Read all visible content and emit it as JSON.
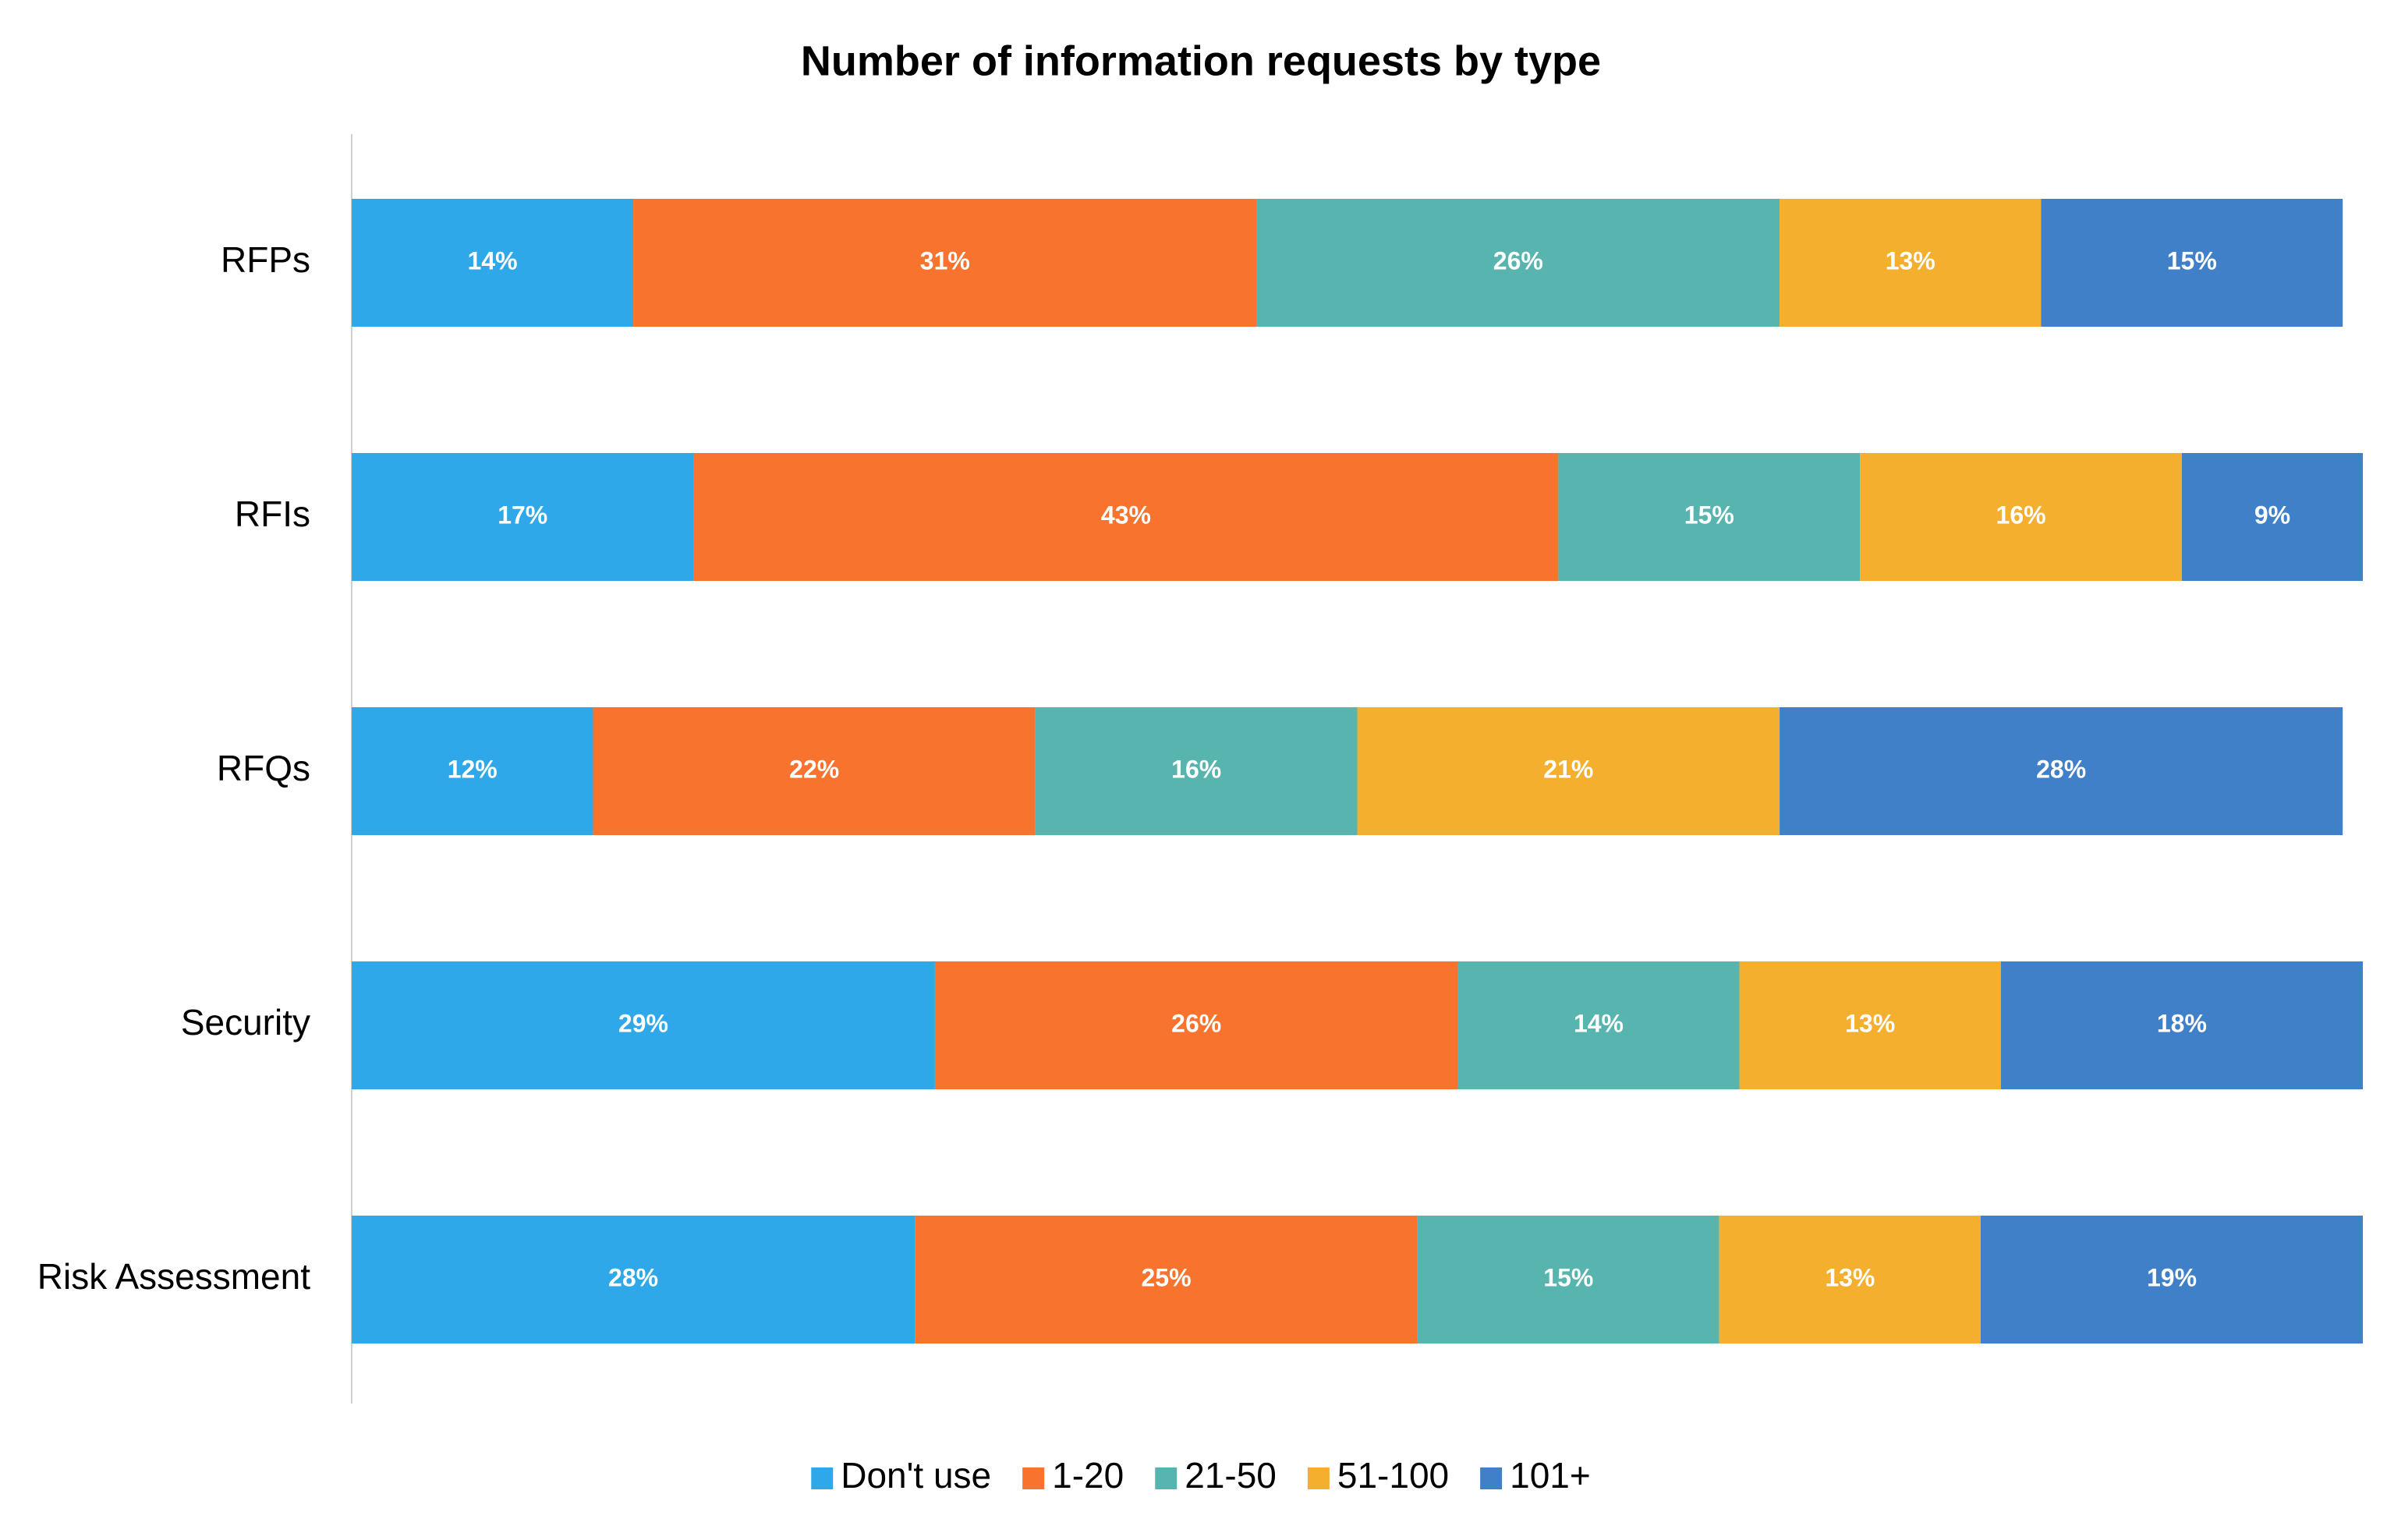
{
  "chart_data": {
    "type": "stacked_bar_horizontal",
    "title": "Number of information requests by type",
    "categories": [
      "RFPs",
      "RFIs",
      "RFQs",
      "Security",
      "Risk Assessment"
    ],
    "xlim": [
      0,
      100
    ],
    "series": [
      {
        "name": "Don't use",
        "color": "#2ea8e8",
        "values": [
          14,
          17,
          12,
          29,
          28
        ],
        "value_labels": [
          "14%",
          "17%",
          "12%",
          "29%",
          "28%"
        ]
      },
      {
        "name": "1-20",
        "color": "#f7732e",
        "values": [
          31,
          43,
          22,
          26,
          25
        ],
        "value_labels": [
          "31%",
          "43%",
          "22%",
          "26%",
          "25%"
        ]
      },
      {
        "name": "21-50",
        "color": "#57b4ae",
        "values": [
          26,
          15,
          16,
          14,
          15
        ],
        "value_labels": [
          "26%",
          "15%",
          "16%",
          "14%",
          "15%"
        ]
      },
      {
        "name": "51-100",
        "color": "#f5af2e",
        "values": [
          13,
          16,
          21,
          13,
          13
        ],
        "value_labels": [
          "13%",
          "16%",
          "21%",
          "13%",
          "13%"
        ]
      },
      {
        "name": "101+",
        "color": "#3f80c8",
        "values": [
          15,
          9,
          28,
          18,
          19
        ],
        "value_labels": [
          "15%",
          "9%",
          "28%",
          "18%",
          "19%"
        ]
      }
    ],
    "legend": "bottom"
  }
}
